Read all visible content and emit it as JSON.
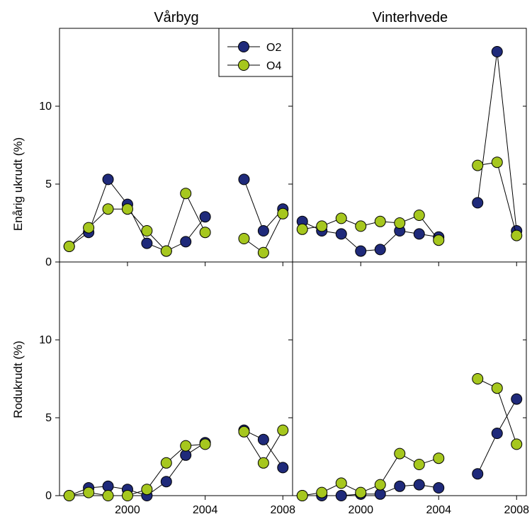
{
  "chart_data": {
    "type": "scatter",
    "columns": [
      "Vårbyg",
      "Vinterhvede"
    ],
    "rows": [
      "Enårig ukrudt (%)",
      "Rodukrudt (%)"
    ],
    "x_ticks": [
      2000,
      2004,
      2008
    ],
    "xlim": [
      1996.5,
      2008.5
    ],
    "y_ticks": [
      0,
      5,
      10
    ],
    "ylim": [
      0,
      15
    ],
    "legend": {
      "position": "top-right of first panel",
      "entries": [
        "O2",
        "O4"
      ]
    },
    "series_colors": {
      "O2": "#1f2a7a",
      "O4": "#a6c71e"
    },
    "panels": [
      {
        "column": "Vårbyg",
        "row": "Enårig ukrudt (%)",
        "series": [
          {
            "name": "O2",
            "points": [
              [
                1997,
                1.0
              ],
              [
                1998,
                1.9
              ],
              [
                1999,
                5.3
              ],
              [
                2000,
                3.7
              ],
              [
                2001,
                1.2
              ],
              [
                2002,
                0.7
              ],
              [
                2003,
                1.3
              ],
              [
                2004,
                2.9
              ],
              [
                2006,
                5.3
              ],
              [
                2007,
                2.0
              ],
              [
                2008,
                3.4
              ]
            ]
          },
          {
            "name": "O4",
            "points": [
              [
                1997,
                1.0
              ],
              [
                1998,
                2.2
              ],
              [
                1999,
                3.4
              ],
              [
                2000,
                3.4
              ],
              [
                2001,
                2.0
              ],
              [
                2002,
                0.7
              ],
              [
                2003,
                4.4
              ],
              [
                2004,
                1.9
              ],
              [
                2006,
                1.5
              ],
              [
                2007,
                0.6
              ],
              [
                2008,
                3.1
              ]
            ]
          }
        ]
      },
      {
        "column": "Vinterhvede",
        "row": "Enårig ukrudt (%)",
        "series": [
          {
            "name": "O2",
            "points": [
              [
                1997,
                2.6
              ],
              [
                1998,
                2.0
              ],
              [
                1999,
                1.8
              ],
              [
                2000,
                0.7
              ],
              [
                2001,
                0.8
              ],
              [
                2002,
                2.0
              ],
              [
                2003,
                1.8
              ],
              [
                2004,
                1.6
              ],
              [
                2006,
                3.8
              ],
              [
                2007,
                13.5
              ],
              [
                2008,
                2.0
              ]
            ]
          },
          {
            "name": "O4",
            "points": [
              [
                1997,
                2.1
              ],
              [
                1998,
                2.3
              ],
              [
                1999,
                2.8
              ],
              [
                2000,
                2.3
              ],
              [
                2001,
                2.6
              ],
              [
                2002,
                2.5
              ],
              [
                2003,
                3.0
              ],
              [
                2004,
                1.4
              ],
              [
                2006,
                6.2
              ],
              [
                2007,
                6.4
              ],
              [
                2008,
                1.7
              ]
            ]
          }
        ]
      },
      {
        "column": "Vårbyg",
        "row": "Rodukrudt (%)",
        "series": [
          {
            "name": "O2",
            "points": [
              [
                1997,
                0.0
              ],
              [
                1998,
                0.5
              ],
              [
                1999,
                0.6
              ],
              [
                2000,
                0.4
              ],
              [
                2001,
                0.0
              ],
              [
                2002,
                0.9
              ],
              [
                2003,
                2.6
              ],
              [
                2004,
                3.4
              ],
              [
                2006,
                4.2
              ],
              [
                2007,
                3.6
              ],
              [
                2008,
                1.8
              ]
            ]
          },
          {
            "name": "O4",
            "points": [
              [
                1997,
                0.0
              ],
              [
                1998,
                0.2
              ],
              [
                1999,
                0.0
              ],
              [
                2000,
                0.0
              ],
              [
                2001,
                0.4
              ],
              [
                2002,
                2.1
              ],
              [
                2003,
                3.2
              ],
              [
                2004,
                3.3
              ],
              [
                2006,
                4.1
              ],
              [
                2007,
                2.1
              ],
              [
                2008,
                4.2
              ]
            ]
          }
        ]
      },
      {
        "column": "Vinterhvede",
        "row": "Rodukrudt (%)",
        "series": [
          {
            "name": "O2",
            "points": [
              [
                1997,
                0.0
              ],
              [
                1998,
                0.0
              ],
              [
                1999,
                0.0
              ],
              [
                2000,
                0.1
              ],
              [
                2001,
                0.1
              ],
              [
                2002,
                0.6
              ],
              [
                2003,
                0.7
              ],
              [
                2004,
                0.5
              ],
              [
                2006,
                1.4
              ],
              [
                2007,
                4.0
              ],
              [
                2008,
                6.2
              ]
            ]
          },
          {
            "name": "O4",
            "points": [
              [
                1997,
                0.0
              ],
              [
                1998,
                0.2
              ],
              [
                1999,
                0.8
              ],
              [
                2000,
                0.2
              ],
              [
                2001,
                0.7
              ],
              [
                2002,
                2.7
              ],
              [
                2003,
                2.0
              ],
              [
                2004,
                2.4
              ],
              [
                2006,
                7.5
              ],
              [
                2007,
                6.9
              ],
              [
                2008,
                3.3
              ]
            ]
          }
        ]
      }
    ]
  }
}
